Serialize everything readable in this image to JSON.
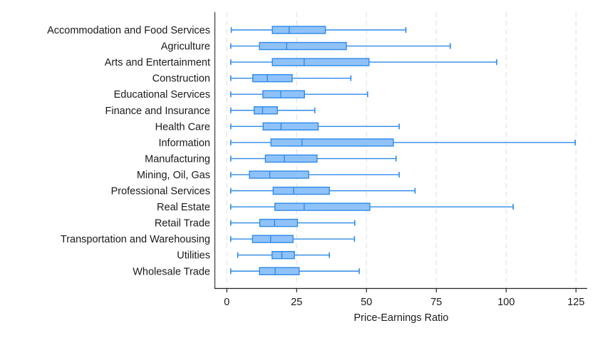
{
  "chart_data": {
    "type": "boxplot",
    "orientation": "horizontal",
    "title": "",
    "xlabel": "Price-Earnings Ratio",
    "ylabel": "",
    "xlim": [
      -4,
      129
    ],
    "xticks": [
      0,
      25,
      50,
      75,
      100,
      125
    ],
    "xtick_labels": [
      "0",
      "25",
      "50",
      "75",
      "100",
      "125"
    ],
    "grid": "vertical dashed",
    "legend": "none",
    "colors": {
      "box_fill": "#90c2fa",
      "box_stroke": "#2f8ae8",
      "grid": "#e6e6e6",
      "axis": "#333333"
    },
    "categories": [
      "Accommodation and Food Services",
      "Agriculture",
      "Arts and Entertainment",
      "Construction",
      "Educational Services",
      "Finance and Insurance",
      "Health Care",
      "Information",
      "Manufacturing",
      "Mining, Oil, Gas",
      "Professional Services",
      "Real Estate",
      "Retail Trade",
      "Transportation and Warehousing",
      "Utilities",
      "Wholesale Trade"
    ],
    "series": [
      {
        "name": "Accommodation and Food Services",
        "min": 1.6,
        "q1": 16.3,
        "median": 22.3,
        "q3": 35.3,
        "max": 64.1
      },
      {
        "name": "Agriculture",
        "min": 1.4,
        "q1": 11.7,
        "median": 21.4,
        "q3": 42.8,
        "max": 80.0
      },
      {
        "name": "Arts and Entertainment",
        "min": 1.4,
        "q1": 16.3,
        "median": 27.7,
        "q3": 50.9,
        "max": 96.6
      },
      {
        "name": "Construction",
        "min": 1.4,
        "q1": 9.3,
        "median": 14.5,
        "q3": 23.4,
        "max": 44.4
      },
      {
        "name": "Educational Services",
        "min": 1.4,
        "q1": 12.9,
        "median": 19.3,
        "q3": 27.8,
        "max": 50.4
      },
      {
        "name": "Finance and Insurance",
        "min": 1.4,
        "q1": 9.8,
        "median": 12.8,
        "q3": 18.1,
        "max": 31.5
      },
      {
        "name": "Health Care",
        "min": 1.4,
        "q1": 13.0,
        "median": 19.4,
        "q3": 32.7,
        "max": 61.7
      },
      {
        "name": "Information",
        "min": 1.4,
        "q1": 15.8,
        "median": 26.9,
        "q3": 59.6,
        "max": 124.7
      },
      {
        "name": "Manufacturing",
        "min": 1.4,
        "q1": 13.8,
        "median": 20.6,
        "q3": 32.3,
        "max": 60.6
      },
      {
        "name": "Mining, Oil, Gas",
        "min": 1.4,
        "q1": 8.1,
        "median": 15.4,
        "q3": 29.3,
        "max": 61.7
      },
      {
        "name": "Professional Services",
        "min": 1.4,
        "q1": 16.6,
        "median": 23.9,
        "q3": 36.7,
        "max": 67.4
      },
      {
        "name": "Real Estate",
        "min": 1.4,
        "q1": 17.2,
        "median": 27.7,
        "q3": 51.2,
        "max": 102.5
      },
      {
        "name": "Retail Trade",
        "min": 1.4,
        "q1": 11.8,
        "median": 17.1,
        "q3": 25.3,
        "max": 45.8
      },
      {
        "name": "Transportation and Warehousing",
        "min": 1.4,
        "q1": 9.2,
        "median": 15.7,
        "q3": 23.7,
        "max": 45.7
      },
      {
        "name": "Utilities",
        "min": 3.9,
        "q1": 16.2,
        "median": 19.7,
        "q3": 24.2,
        "max": 36.7
      },
      {
        "name": "Wholesale Trade",
        "min": 1.4,
        "q1": 11.7,
        "median": 17.3,
        "q3": 25.9,
        "max": 47.4
      }
    ]
  }
}
